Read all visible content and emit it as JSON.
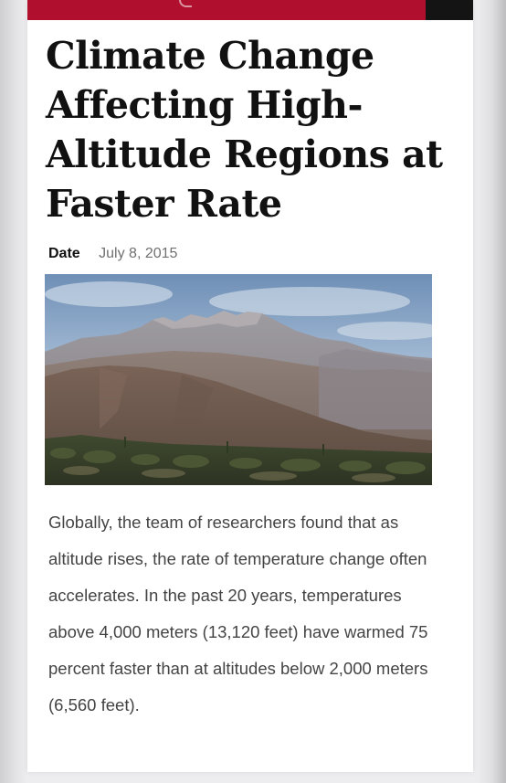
{
  "article": {
    "headline": "Climate Change Affecting High-Altitude Regions at Faster Rate",
    "date_label": "Date",
    "date_value": "July 8, 2015",
    "image_icon": "mountain-landscape-photo",
    "body": "Globally, the team of researchers found that as altitude rises, the rate of temperature change often accelerates. In the past 20 years, temperatures above 4,000 meters (13,120 feet) have warmed 75 percent faster than at altitudes below 2,000 meters (6,560 feet)."
  },
  "colors": {
    "brand_red": "#b0102e",
    "header_dark": "#141414",
    "headline_text": "#111111",
    "date_text": "#707070",
    "body_text": "#444444"
  }
}
